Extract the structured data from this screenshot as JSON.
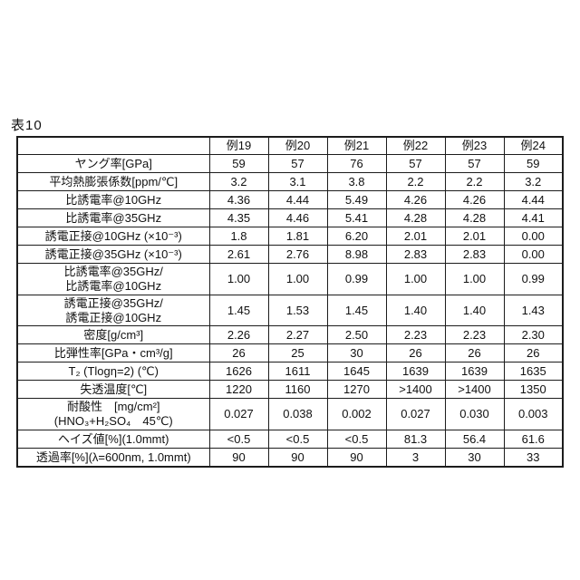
{
  "title": "表10",
  "colors": {
    "background": "#ffffff",
    "text": "#111111",
    "border": "#1c1c1c"
  },
  "table": {
    "col_headers": [
      "例19",
      "例20",
      "例21",
      "例22",
      "例23",
      "例24"
    ],
    "rows": [
      {
        "label": "ヤング率[GPa]",
        "values": [
          "59",
          "57",
          "76",
          "57",
          "57",
          "59"
        ]
      },
      {
        "label": "平均熱膨張係数[ppm/℃]",
        "values": [
          "3.2",
          "3.1",
          "3.8",
          "2.2",
          "2.2",
          "3.2"
        ]
      },
      {
        "label": "比誘電率@10GHz",
        "values": [
          "4.36",
          "4.44",
          "5.49",
          "4.26",
          "4.26",
          "4.44"
        ]
      },
      {
        "label": "比誘電率@35GHz",
        "values": [
          "4.35",
          "4.46",
          "5.41",
          "4.28",
          "4.28",
          "4.41"
        ]
      },
      {
        "label": "誘電正接@10GHz (×10⁻³)",
        "values": [
          "1.8",
          "1.81",
          "6.20",
          "2.01",
          "2.01",
          "0.00"
        ]
      },
      {
        "label": "誘電正接@35GHz (×10⁻³)",
        "values": [
          "2.61",
          "2.76",
          "8.98",
          "2.83",
          "2.83",
          "0.00"
        ]
      },
      {
        "label": "比誘電率@35GHz/\n比誘電率@10GHz",
        "values": [
          "1.00",
          "1.00",
          "0.99",
          "1.00",
          "1.00",
          "0.99"
        ]
      },
      {
        "label": "誘電正接@35GHz/\n誘電正接@10GHz",
        "values": [
          "1.45",
          "1.53",
          "1.45",
          "1.40",
          "1.40",
          "1.43"
        ]
      },
      {
        "label": "密度[g/cm³]",
        "values": [
          "2.26",
          "2.27",
          "2.50",
          "2.23",
          "2.23",
          "2.30"
        ]
      },
      {
        "label": "比弾性率[GPa・cm³/g]",
        "values": [
          "26",
          "25",
          "30",
          "26",
          "26",
          "26"
        ]
      },
      {
        "label": "T₂ (Tlogη=2)  (℃)",
        "values": [
          "1626",
          "1611",
          "1645",
          "1639",
          "1639",
          "1635"
        ]
      },
      {
        "label": "失透温度[℃]",
        "values": [
          "1220",
          "1160",
          "1270",
          ">1400",
          ">1400",
          "1350"
        ]
      },
      {
        "label": "耐酸性　[mg/cm²]\n(HNO₃+H₂SO₄　45℃)",
        "values": [
          "0.027",
          "0.038",
          "0.002",
          "0.027",
          "0.030",
          "0.003"
        ]
      },
      {
        "label": "ヘイズ値[%](1.0mmt)",
        "values": [
          "<0.5",
          "<0.5",
          "<0.5",
          "81.3",
          "56.4",
          "61.6"
        ]
      },
      {
        "label": "透過率[%](λ=600nm, 1.0mmt)",
        "values": [
          "90",
          "90",
          "90",
          "3",
          "30",
          "33"
        ]
      }
    ]
  }
}
